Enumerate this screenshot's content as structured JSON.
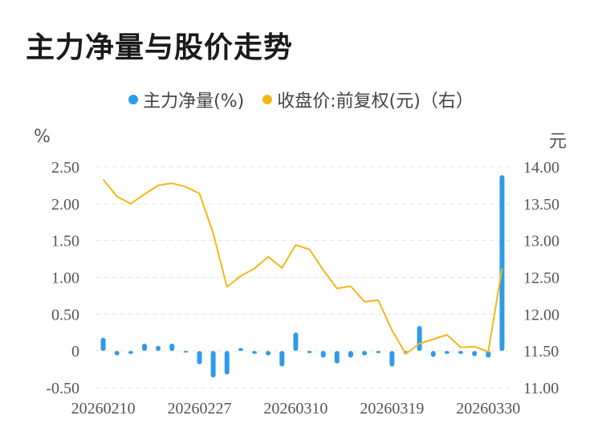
{
  "title": "主力净量与股价走势",
  "legend": {
    "left_series": "主力净量(%)",
    "right_series": "收盘价:前复权(元)（右）"
  },
  "units": {
    "left": "%",
    "right": "元"
  },
  "colors": {
    "bar": "#2e9bea",
    "line": "#f5b716",
    "grid": "#e6e6e6"
  },
  "chart_data": {
    "type": "bar+line",
    "x_tick_labels": [
      "20260210",
      "20260227",
      "20260310",
      "20260319",
      "20260330"
    ],
    "y_left": {
      "ticks": [
        "-0.50",
        "0",
        "0.50",
        "1.00",
        "1.50",
        "2.00",
        "2.50"
      ],
      "range": [
        -0.5,
        2.5
      ]
    },
    "y_right": {
      "ticks": [
        "11.00",
        "11.50",
        "12.00",
        "12.50",
        "13.00",
        "13.50",
        "14.00"
      ],
      "range": [
        11.0,
        14.0
      ]
    },
    "grid": true,
    "legend_position": "top",
    "series": [
      {
        "name": "主力净量(%)",
        "type": "bar",
        "axis": "left",
        "values": [
          0.18,
          -0.06,
          -0.04,
          0.1,
          0.07,
          0.1,
          -0.01,
          -0.18,
          -0.36,
          -0.32,
          0.04,
          -0.04,
          -0.06,
          -0.21,
          0.25,
          -0.03,
          -0.09,
          -0.17,
          -0.09,
          -0.06,
          -0.03,
          -0.21,
          -0.04,
          0.34,
          -0.08,
          -0.04,
          -0.04,
          -0.07,
          -0.09,
          2.39
        ]
      },
      {
        "name": "收盘价:前复权(元)（右）",
        "type": "line",
        "axis": "right",
        "values": [
          13.83,
          13.6,
          13.5,
          13.63,
          13.75,
          13.78,
          13.73,
          13.64,
          13.1,
          12.37,
          12.52,
          12.62,
          12.78,
          12.63,
          12.94,
          12.88,
          12.6,
          12.35,
          12.38,
          12.17,
          12.19,
          11.78,
          11.46,
          11.6,
          11.66,
          11.72,
          11.55,
          11.56,
          11.49,
          12.62
        ]
      }
    ]
  }
}
